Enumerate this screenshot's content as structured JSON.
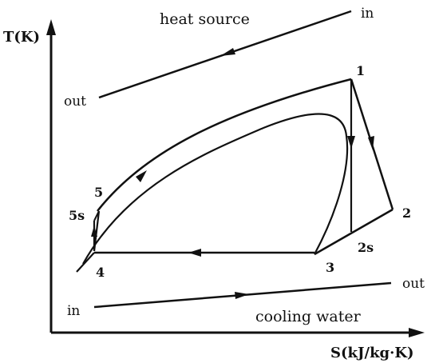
{
  "axes": {
    "y_label": "T(K)",
    "x_label": "S(kJ/kg·K)"
  },
  "streams": {
    "heat_source": {
      "name": "heat source",
      "in_label": "in",
      "out_label": "out"
    },
    "cooling_water": {
      "name": "cooling water",
      "in_label": "in",
      "out_label": "out"
    }
  },
  "state_points": {
    "p1": "1",
    "p2": "2",
    "p2s": "2s",
    "p3": "3",
    "p4": "4",
    "p5": "5",
    "p5s": "5s"
  }
}
